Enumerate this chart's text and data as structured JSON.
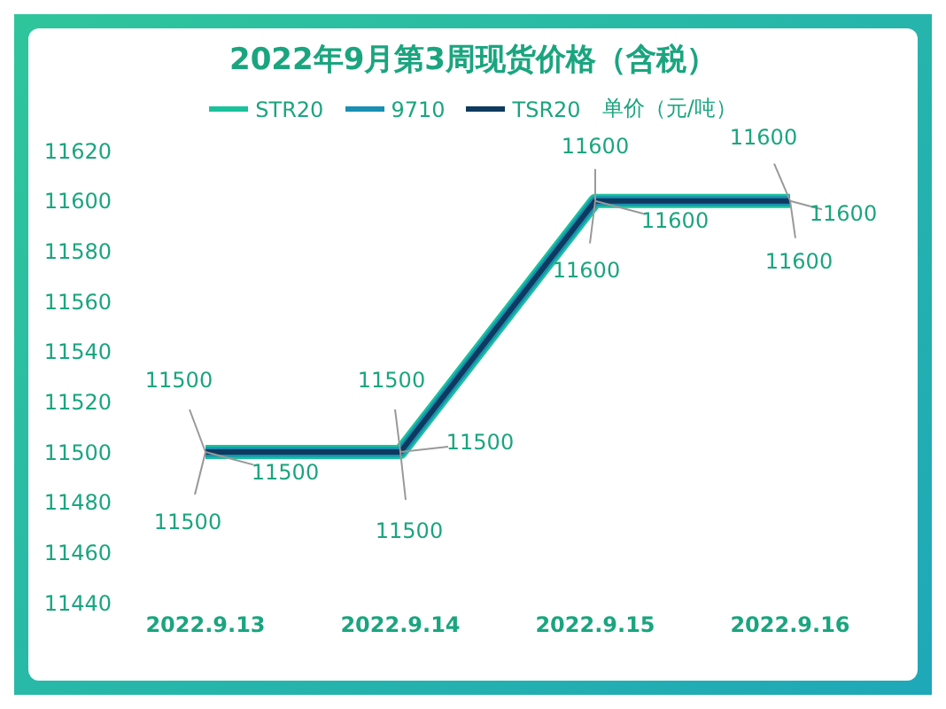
{
  "chart_data": {
    "type": "line",
    "title": "2022年9月第3周现货价格（含税）",
    "ylabel": "单价（元/吨）",
    "categories": [
      "2022.9.13",
      "2022.9.14",
      "2022.9.15",
      "2022.9.16"
    ],
    "series": [
      {
        "name": "STR20",
        "color": "#19c29b",
        "values": [
          11500,
          11500,
          11600,
          11600
        ]
      },
      {
        "name": "9710",
        "color": "#1a8fb3",
        "values": [
          11500,
          11500,
          11600,
          11600
        ]
      },
      {
        "name": "TSR20",
        "color": "#0e3a5f",
        "values": [
          11500,
          11500,
          11600,
          11600
        ]
      }
    ],
    "ylim": [
      11440,
      11620
    ],
    "yticks": [
      11440,
      11460,
      11480,
      11500,
      11520,
      11540,
      11560,
      11580,
      11600,
      11620
    ],
    "grid": false,
    "legend": "top",
    "data_labels": true,
    "marker": "none",
    "line_style": "solid"
  }
}
